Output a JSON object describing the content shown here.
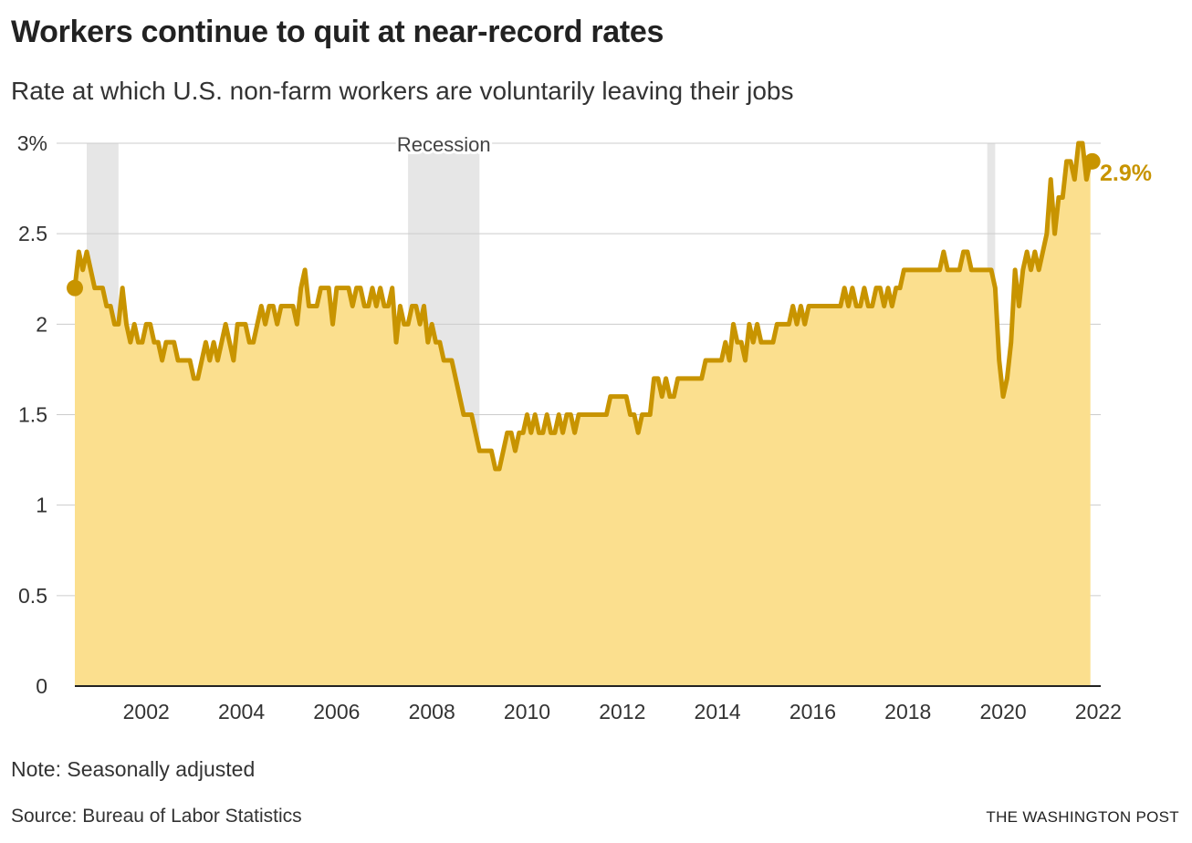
{
  "header": {
    "title": "Workers continue to quit at near-record rates",
    "subtitle": "Rate at which U.S. non-farm workers are voluntarily leaving their jobs"
  },
  "footer": {
    "note": "Note: Seasonally adjusted",
    "source": "Source: Bureau of Labor Statistics",
    "brand": "THE WASHINGTON POST"
  },
  "colors": {
    "line": "#c89400",
    "area": "#fbdf8e",
    "recession": "#e6e6e6",
    "grid": "#cccccc",
    "callout": "#c89400"
  },
  "chart_data": {
    "type": "area",
    "xlabel": "",
    "ylabel": "",
    "ylim": [
      0,
      3
    ],
    "xlim": [
      "2000-12",
      "2022-02"
    ],
    "y_ticks": [
      {
        "value": 0,
        "label": "0"
      },
      {
        "value": 0.5,
        "label": "0.5"
      },
      {
        "value": 1,
        "label": "1"
      },
      {
        "value": 1.5,
        "label": "1.5"
      },
      {
        "value": 2,
        "label": "2"
      },
      {
        "value": 2.5,
        "label": "2.5"
      },
      {
        "value": 3,
        "label": "3%"
      }
    ],
    "x_ticks": [
      "2002",
      "2004",
      "2006",
      "2008",
      "2010",
      "2012",
      "2014",
      "2016",
      "2018",
      "2020",
      "2022"
    ],
    "grid": true,
    "recessions": [
      {
        "start": "2001-03",
        "end": "2001-11"
      },
      {
        "start": "2007-12",
        "end": "2009-06"
      },
      {
        "start": "2020-02",
        "end": "2020-04"
      }
    ],
    "recession_label": "Recession",
    "end_label": "2.9%",
    "series": [
      {
        "start": "2000-12",
        "values": [
          2.2,
          2.4,
          2.3,
          2.4,
          2.3,
          2.2,
          2.2,
          2.2,
          2.1,
          2.1,
          2.0,
          2.0,
          2.2,
          2.0,
          1.9,
          2.0,
          1.9,
          1.9,
          2.0,
          2.0,
          1.9,
          1.9,
          1.8,
          1.9,
          1.9,
          1.9,
          1.8,
          1.8,
          1.8,
          1.8,
          1.7,
          1.7,
          1.8,
          1.9,
          1.8,
          1.9,
          1.8,
          1.9,
          2.0,
          1.9,
          1.8,
          2.0,
          2.0,
          2.0,
          1.9,
          1.9,
          2.0,
          2.1,
          2.0,
          2.1,
          2.1,
          2.0,
          2.1,
          2.1,
          2.1,
          2.1,
          2.0,
          2.2,
          2.3,
          2.1,
          2.1,
          2.1,
          2.2,
          2.2,
          2.2,
          2.0,
          2.2,
          2.2,
          2.2,
          2.2,
          2.1,
          2.2,
          2.2,
          2.1,
          2.1,
          2.2,
          2.1,
          2.2,
          2.1,
          2.1,
          2.2,
          1.9,
          2.1,
          2.0,
          2.0,
          2.1,
          2.1,
          2.0,
          2.1,
          1.9,
          2.0,
          1.9,
          1.9,
          1.8,
          1.8,
          1.8,
          1.7,
          1.6,
          1.5,
          1.5,
          1.5,
          1.4,
          1.3,
          1.3,
          1.3,
          1.3,
          1.2,
          1.2,
          1.3,
          1.4,
          1.4,
          1.3,
          1.4,
          1.4,
          1.5,
          1.4,
          1.5,
          1.4,
          1.4,
          1.5,
          1.4,
          1.4,
          1.5,
          1.4,
          1.5,
          1.5,
          1.4,
          1.5,
          1.5,
          1.5,
          1.5,
          1.5,
          1.5,
          1.5,
          1.5,
          1.6,
          1.6,
          1.6,
          1.6,
          1.6,
          1.5,
          1.5,
          1.4,
          1.5,
          1.5,
          1.5,
          1.7,
          1.7,
          1.6,
          1.7,
          1.6,
          1.6,
          1.7,
          1.7,
          1.7,
          1.7,
          1.7,
          1.7,
          1.7,
          1.8,
          1.8,
          1.8,
          1.8,
          1.8,
          1.9,
          1.8,
          2.0,
          1.9,
          1.9,
          1.8,
          2.0,
          1.9,
          2.0,
          1.9,
          1.9,
          1.9,
          1.9,
          2.0,
          2.0,
          2.0,
          2.0,
          2.1,
          2.0,
          2.1,
          2.0,
          2.1,
          2.1,
          2.1,
          2.1,
          2.1,
          2.1,
          2.1,
          2.1,
          2.1,
          2.2,
          2.1,
          2.2,
          2.1,
          2.1,
          2.2,
          2.1,
          2.1,
          2.2,
          2.2,
          2.1,
          2.2,
          2.1,
          2.2,
          2.2,
          2.3,
          2.3,
          2.3,
          2.3,
          2.3,
          2.3,
          2.3,
          2.3,
          2.3,
          2.3,
          2.4,
          2.3,
          2.3,
          2.3,
          2.3,
          2.4,
          2.4,
          2.3,
          2.3,
          2.3,
          2.3,
          2.3,
          2.3,
          2.2,
          1.8,
          1.6,
          1.7,
          1.9,
          2.3,
          2.1,
          2.3,
          2.4,
          2.3,
          2.4,
          2.3,
          2.4,
          2.5,
          2.8,
          2.5,
          2.7,
          2.7,
          2.9,
          2.9,
          2.8,
          3.0,
          3.0,
          2.8,
          2.9
        ]
      }
    ]
  }
}
